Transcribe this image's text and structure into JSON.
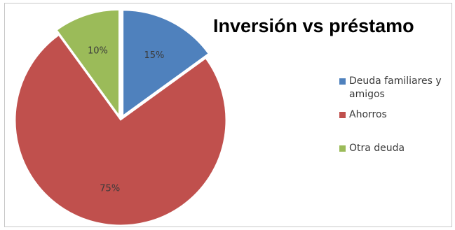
{
  "chart_data": {
    "type": "pie",
    "title": "Inversión vs préstamo",
    "slices": [
      {
        "name": "Deuda familiares y amigos",
        "value": 15,
        "label": "15%",
        "color": "#4f81bd",
        "exploded": true
      },
      {
        "name": "Ahorros",
        "value": 75,
        "label": "75%",
        "color": "#c0504d",
        "exploded": false
      },
      {
        "name": "Otra deuda",
        "value": 10,
        "label": "10%",
        "color": "#9bbb59",
        "exploded": true
      }
    ],
    "legend_position": "right",
    "start_angle_deg": 0,
    "direction": "clockwise"
  }
}
